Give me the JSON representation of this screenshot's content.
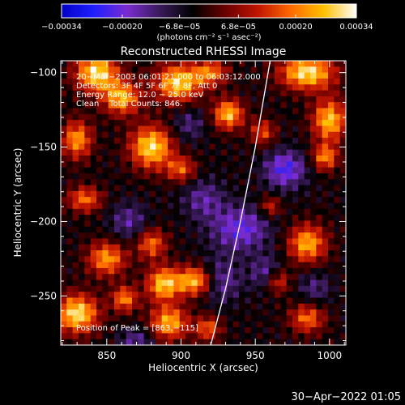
{
  "chart_data": {
    "type": "heatmap",
    "title": "Reconstructed RHESSI Image",
    "xlabel": "Heliocentric X (arcsec)",
    "ylabel": "Heliocentric Y (arcsec)",
    "xlim": [
      819,
      1011
    ],
    "ylim": [
      -283,
      -92
    ],
    "x_ticks": [
      850,
      900,
      950,
      1000
    ],
    "y_ticks": [
      -100,
      -150,
      -200,
      -250
    ],
    "x_tick_labels": [
      "850",
      "900",
      "950",
      "1000"
    ],
    "y_tick_labels": [
      "−100",
      "−150",
      "−200",
      "−250"
    ],
    "colorbar": {
      "range": [
        -0.00034,
        0.00034
      ],
      "tick_values": [
        -0.00034,
        -0.0002,
        -6.8e-05,
        6.8e-05,
        0.0002,
        0.00034
      ],
      "tick_labels": [
        "−0.00034",
        "−0.00020",
        "−6.8e−05",
        "6.8e−05",
        "0.00020",
        "0.00034"
      ],
      "unit_label": "(photons cm⁻² s⁻¹ asec⁻²)",
      "colors": [
        "#0000c8",
        "#2020ff",
        "#7a2bd0",
        "#3a1a5a",
        "#000000",
        "#6a0000",
        "#c01500",
        "#ff6a00",
        "#ffc000",
        "#ffffff"
      ]
    },
    "annotations": [
      "20−Mar−2003 06:01:21.000 to 06:03:12.000",
      "Detectors: 3F 4F 5F 6F 7F 8F, Att 0",
      "Energy Range: 12.0 − 25.0 keV",
      "Clean    Total Counts: 846.",
      "Position of Peak = [863,−115]"
    ],
    "peak": [
      863,
      -115
    ],
    "limb": [
      [
        960,
        -92
      ],
      [
        950,
        -150
      ],
      [
        940,
        -200
      ],
      [
        930,
        -245
      ],
      [
        920,
        -283
      ]
    ],
    "features": [
      {
        "x": 843,
        "y": -100,
        "v": 0.00034,
        "sx": 10,
        "sy": 9
      },
      {
        "x": 860,
        "y": -117,
        "v": 0.00028,
        "sx": 9,
        "sy": 8
      },
      {
        "x": 898,
        "y": -107,
        "v": 0.00032,
        "sx": 11,
        "sy": 9
      },
      {
        "x": 920,
        "y": -100,
        "v": 0.00022,
        "sx": 8,
        "sy": 6
      },
      {
        "x": 880,
        "y": -150,
        "v": 0.00033,
        "sx": 10,
        "sy": 10
      },
      {
        "x": 900,
        "y": -165,
        "v": 0.0002,
        "sx": 7,
        "sy": 6
      },
      {
        "x": 932,
        "y": -128,
        "v": 0.0003,
        "sx": 7,
        "sy": 7
      },
      {
        "x": 985,
        "y": -100,
        "v": 0.00034,
        "sx": 13,
        "sy": 8
      },
      {
        "x": 1000,
        "y": -132,
        "v": 0.0003,
        "sx": 8,
        "sy": 10
      },
      {
        "x": 997,
        "y": -157,
        "v": 0.00024,
        "sx": 6,
        "sy": 6
      },
      {
        "x": 985,
        "y": -215,
        "v": 0.00028,
        "sx": 9,
        "sy": 9
      },
      {
        "x": 965,
        "y": -240,
        "v": 0.0002,
        "sx": 6,
        "sy": 6
      },
      {
        "x": 830,
        "y": -145,
        "v": 0.00026,
        "sx": 7,
        "sy": 9
      },
      {
        "x": 835,
        "y": -185,
        "v": 0.00022,
        "sx": 8,
        "sy": 6
      },
      {
        "x": 850,
        "y": -225,
        "v": 0.00026,
        "sx": 9,
        "sy": 8
      },
      {
        "x": 880,
        "y": -215,
        "v": 0.00022,
        "sx": 7,
        "sy": 7
      },
      {
        "x": 830,
        "y": -262,
        "v": 0.00034,
        "sx": 10,
        "sy": 9
      },
      {
        "x": 862,
        "y": -252,
        "v": 0.00024,
        "sx": 6,
        "sy": 6
      },
      {
        "x": 888,
        "y": -242,
        "v": 0.0003,
        "sx": 8,
        "sy": 8
      },
      {
        "x": 910,
        "y": -240,
        "v": 0.00032,
        "sx": 9,
        "sy": 7
      },
      {
        "x": 892,
        "y": -268,
        "v": 0.00028,
        "sx": 9,
        "sy": 8
      },
      {
        "x": 918,
        "y": -272,
        "v": 0.0002,
        "sx": 6,
        "sy": 6
      },
      {
        "x": 985,
        "y": -265,
        "v": 0.00022,
        "sx": 8,
        "sy": 7
      },
      {
        "x": 960,
        "y": -190,
        "v": 0.00016,
        "sx": 5,
        "sy": 5
      },
      {
        "x": 955,
        "y": -140,
        "v": 0.00018,
        "sx": 6,
        "sy": 6
      },
      {
        "x": 915,
        "y": -185,
        "v": -0.00012,
        "sx": 10,
        "sy": 10
      },
      {
        "x": 940,
        "y": -205,
        "v": -0.00018,
        "sx": 14,
        "sy": 11
      },
      {
        "x": 925,
        "y": -240,
        "v": -0.00016,
        "sx": 10,
        "sy": 10
      },
      {
        "x": 970,
        "y": -165,
        "v": -0.0002,
        "sx": 10,
        "sy": 9
      },
      {
        "x": 958,
        "y": -235,
        "v": -0.00014,
        "sx": 8,
        "sy": 8
      },
      {
        "x": 905,
        "y": -135,
        "v": -0.0001,
        "sx": 8,
        "sy": 8
      },
      {
        "x": 865,
        "y": -200,
        "v": -0.00012,
        "sx": 9,
        "sy": 9
      },
      {
        "x": 870,
        "y": -280,
        "v": -0.00012,
        "sx": 8,
        "sy": 6
      },
      {
        "x": 990,
        "y": -245,
        "v": -0.0001,
        "sx": 8,
        "sy": 8
      }
    ]
  },
  "footer": {
    "timestamp": "30−Apr−2022 01:05"
  }
}
